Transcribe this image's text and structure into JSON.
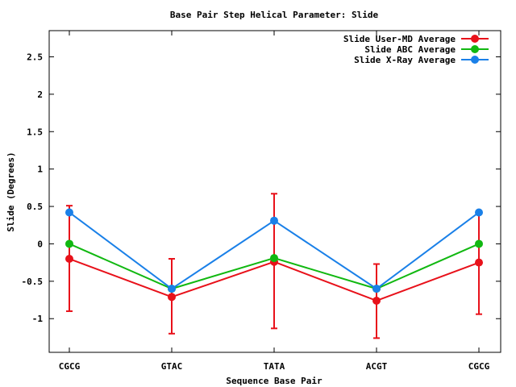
{
  "chart_data": {
    "type": "line",
    "title": "Base Pair Step Helical Parameter: Slide",
    "xlabel": "Sequence Base Pair",
    "ylabel": "Slide (Degrees)",
    "categories": [
      "CGCG",
      "GTAC",
      "TATA",
      "ACGT",
      "CGCG"
    ],
    "ylim": [
      -1.45,
      2.85
    ],
    "yticks": [
      -1,
      -0.5,
      0,
      0.5,
      1,
      1.5,
      2,
      2.5
    ],
    "ytick_labels": [
      "-1",
      "-0.5",
      "0",
      "0.5",
      "1",
      "1.5",
      "2",
      "2.5"
    ],
    "legend_position": "top-right",
    "series": [
      {
        "name": "Slide User-MD Average",
        "color": "#e8111a",
        "values": [
          -0.2,
          -0.71,
          -0.24,
          -0.76,
          -0.25
        ],
        "error_low": [
          -0.9,
          -1.2,
          -1.13,
          -1.26,
          -0.94
        ],
        "error_high": [
          0.51,
          -0.2,
          0.67,
          -0.27,
          0.41
        ]
      },
      {
        "name": "Slide ABC Average",
        "color": "#11b811",
        "values": [
          0.0,
          -0.6,
          -0.19,
          -0.6,
          0.0
        ]
      },
      {
        "name": "Slide X-Ray Average",
        "color": "#1a80e8",
        "values": [
          0.42,
          -0.6,
          0.31,
          -0.6,
          0.42
        ]
      }
    ]
  }
}
